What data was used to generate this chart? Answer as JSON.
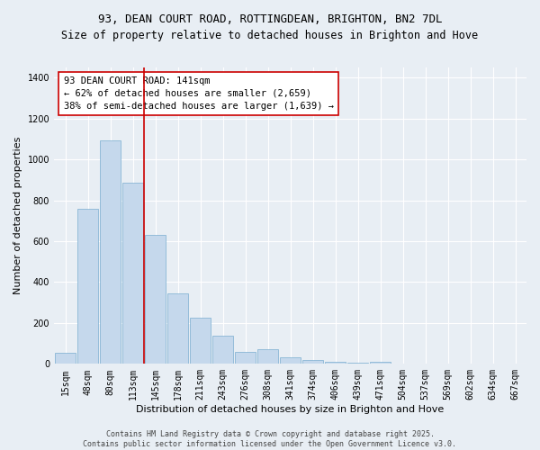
{
  "title_line1": "93, DEAN COURT ROAD, ROTTINGDEAN, BRIGHTON, BN2 7DL",
  "title_line2": "Size of property relative to detached houses in Brighton and Hove",
  "xlabel": "Distribution of detached houses by size in Brighton and Hove",
  "ylabel": "Number of detached properties",
  "categories": [
    "15sqm",
    "48sqm",
    "80sqm",
    "113sqm",
    "145sqm",
    "178sqm",
    "211sqm",
    "243sqm",
    "276sqm",
    "308sqm",
    "341sqm",
    "374sqm",
    "406sqm",
    "439sqm",
    "471sqm",
    "504sqm",
    "537sqm",
    "569sqm",
    "602sqm",
    "634sqm",
    "667sqm"
  ],
  "values": [
    55,
    760,
    1095,
    885,
    630,
    345,
    228,
    138,
    60,
    70,
    33,
    20,
    12,
    6,
    10,
    3,
    1,
    0,
    0,
    0,
    0
  ],
  "bar_color": "#c5d8ec",
  "bar_edge_color": "#7aaed0",
  "vline_color": "#cc0000",
  "annotation_text": "93 DEAN COURT ROAD: 141sqm\n← 62% of detached houses are smaller (2,659)\n38% of semi-detached houses are larger (1,639) →",
  "annotation_box_color": "#ffffff",
  "annotation_box_edge": "#cc0000",
  "ylim": [
    0,
    1450
  ],
  "yticks": [
    0,
    200,
    400,
    600,
    800,
    1000,
    1200,
    1400
  ],
  "bg_color": "#e8eef4",
  "grid_color": "#ffffff",
  "footer": "Contains HM Land Registry data © Crown copyright and database right 2025.\nContains public sector information licensed under the Open Government Licence v3.0.",
  "title_fontsize": 9,
  "subtitle_fontsize": 8.5,
  "axis_label_fontsize": 8,
  "tick_fontsize": 7,
  "annotation_fontsize": 7.5,
  "footer_fontsize": 6
}
